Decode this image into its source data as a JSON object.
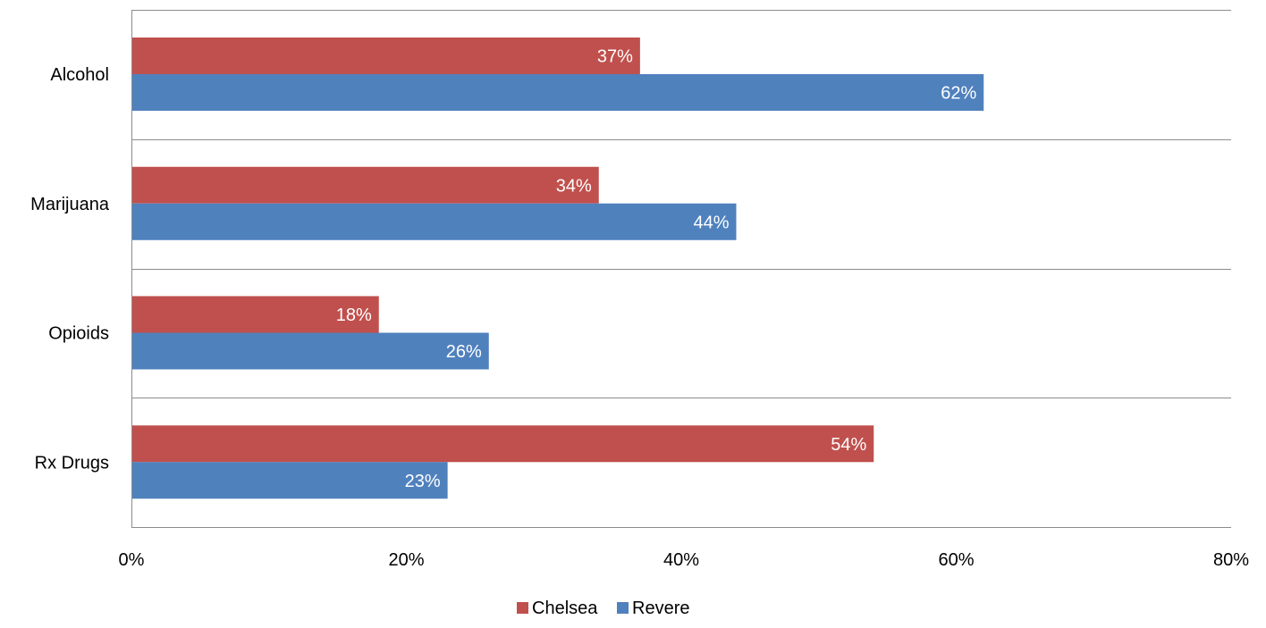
{
  "chart_data": {
    "type": "bar",
    "orientation": "horizontal",
    "categories": [
      "Alcohol",
      "Marijuana",
      "Opioids",
      "Rx Drugs"
    ],
    "series": [
      {
        "name": "Chelsea",
        "color": "#c0504d",
        "values": [
          37,
          34,
          18,
          54
        ],
        "labels": [
          "37%",
          "34%",
          "18%",
          "54%"
        ]
      },
      {
        "name": "Revere",
        "color": "#4f81bd",
        "values": [
          62,
          44,
          26,
          23
        ],
        "labels": [
          "62%",
          "44%",
          "26%",
          "23%"
        ]
      }
    ],
    "xlim": [
      0,
      80
    ],
    "x_ticks": [
      0,
      20,
      40,
      60,
      80
    ],
    "x_tick_labels": [
      "0%",
      "20%",
      "40%",
      "60%",
      "80%"
    ],
    "title": "",
    "xlabel": "",
    "ylabel": "",
    "grid": "horizontal category separators",
    "legend": "bottom-center"
  }
}
